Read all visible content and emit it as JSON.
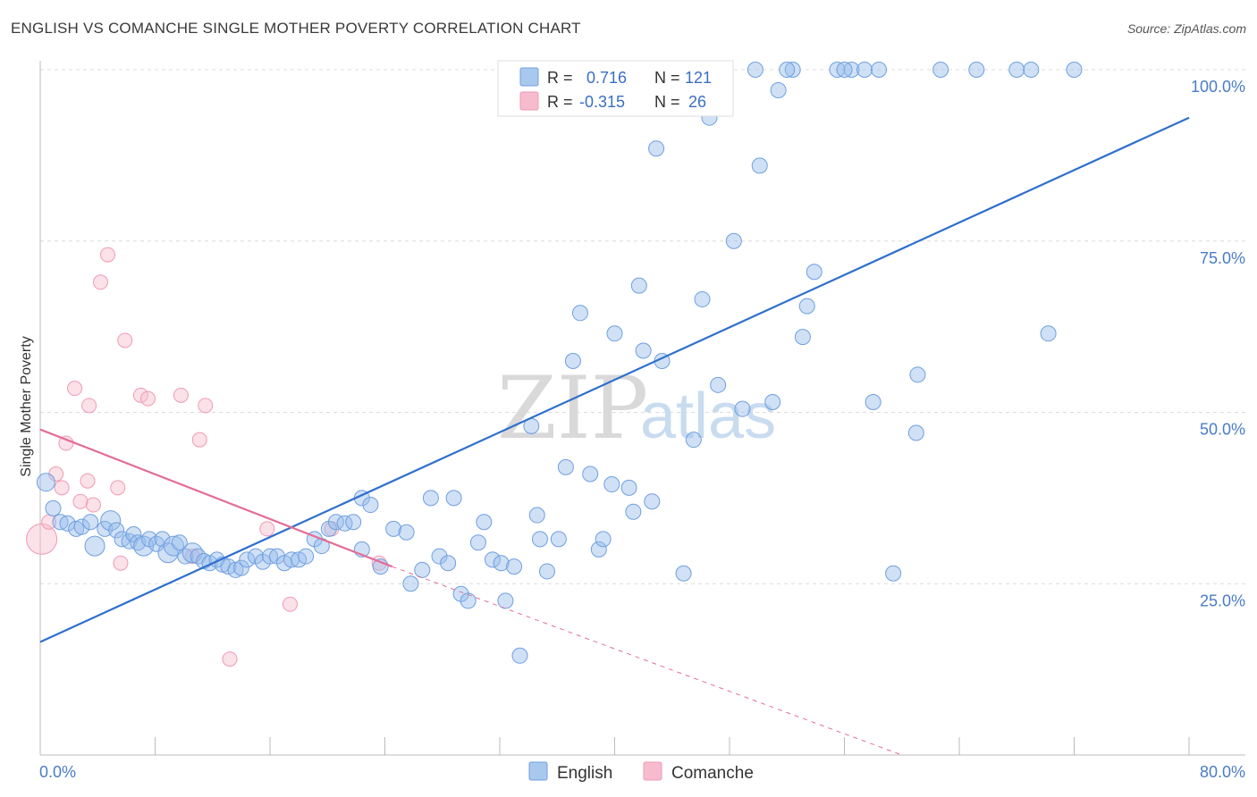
{
  "header": {
    "title": "ENGLISH VS COMANCHE SINGLE MOTHER POVERTY CORRELATION CHART",
    "source": "Source: ZipAtlas.com"
  },
  "watermark": {
    "zip": "ZIP",
    "atlas": "atlas"
  },
  "legend": {
    "rows": [
      {
        "r_label": "R =",
        "r_value": "0.716",
        "n_label": "N =",
        "n_value": "121",
        "color": "#a9c8ee"
      },
      {
        "r_label": "R =",
        "r_value": "-0.315",
        "n_label": "N =",
        "n_value": "26",
        "color": "#f6bccd"
      }
    ]
  },
  "chart_data": {
    "type": "scatter",
    "ylabel": "Single Mother Poverty",
    "xlim": [
      0,
      80
    ],
    "ylim": [
      0,
      100
    ],
    "x_tick_labels": [
      "0.0%",
      "80.0%"
    ],
    "y_tick_labels": [
      "25.0%",
      "50.0%",
      "75.0%",
      "100.0%"
    ],
    "y_ticks": [
      25,
      50,
      75,
      100
    ],
    "grid": true,
    "colors": {
      "english": "#6f9fe0",
      "english_line": "#2f6fcc",
      "comanche": "#f09ab5",
      "comanche_line": "#e36e97"
    },
    "series": [
      {
        "name": "English",
        "points": [
          [
            0.4,
            39.8
          ],
          [
            0.9,
            36.0
          ],
          [
            1.4,
            34.0
          ],
          [
            1.9,
            33.8
          ],
          [
            2.5,
            33.0
          ],
          [
            2.9,
            33.3
          ],
          [
            3.5,
            34.0
          ],
          [
            3.8,
            30.5
          ],
          [
            4.5,
            33.0
          ],
          [
            4.9,
            34.2
          ],
          [
            5.3,
            32.8
          ],
          [
            5.7,
            31.5
          ],
          [
            6.2,
            31.2
          ],
          [
            6.5,
            32.2
          ],
          [
            6.8,
            31.0
          ],
          [
            7.2,
            30.5
          ],
          [
            7.6,
            31.5
          ],
          [
            8.1,
            30.8
          ],
          [
            8.5,
            31.5
          ],
          [
            8.9,
            29.5
          ],
          [
            9.3,
            30.5
          ],
          [
            9.7,
            31.0
          ],
          [
            10.1,
            29.0
          ],
          [
            10.6,
            29.5
          ],
          [
            11.0,
            29.0
          ],
          [
            11.4,
            28.3
          ],
          [
            11.8,
            28.0
          ],
          [
            12.3,
            28.5
          ],
          [
            12.7,
            27.8
          ],
          [
            13.1,
            27.5
          ],
          [
            13.6,
            27.0
          ],
          [
            14.0,
            27.3
          ],
          [
            14.4,
            28.5
          ],
          [
            15.0,
            29.0
          ],
          [
            15.5,
            28.2
          ],
          [
            16.0,
            29.0
          ],
          [
            16.5,
            29.0
          ],
          [
            17.0,
            28.0
          ],
          [
            17.5,
            28.5
          ],
          [
            18.0,
            28.5
          ],
          [
            18.5,
            29.0
          ],
          [
            19.1,
            31.5
          ],
          [
            19.6,
            30.5
          ],
          [
            20.1,
            33.0
          ],
          [
            20.6,
            34.0
          ],
          [
            21.2,
            33.8
          ],
          [
            21.8,
            34.0
          ],
          [
            22.4,
            37.5
          ],
          [
            23.0,
            36.5
          ],
          [
            22.4,
            30.0
          ],
          [
            23.7,
            27.5
          ],
          [
            24.6,
            33.0
          ],
          [
            25.5,
            32.5
          ],
          [
            25.8,
            25.0
          ],
          [
            26.6,
            27.0
          ],
          [
            27.2,
            37.5
          ],
          [
            27.8,
            29.0
          ],
          [
            28.4,
            28.0
          ],
          [
            28.8,
            37.5
          ],
          [
            29.3,
            23.5
          ],
          [
            29.8,
            22.5
          ],
          [
            30.5,
            31.0
          ],
          [
            30.9,
            34.0
          ],
          [
            31.5,
            28.5
          ],
          [
            32.1,
            28.0
          ],
          [
            32.4,
            22.5
          ],
          [
            33.0,
            27.5
          ],
          [
            33.4,
            14.5
          ],
          [
            34.2,
            48.0
          ],
          [
            34.6,
            35.0
          ],
          [
            34.8,
            31.5
          ],
          [
            35.3,
            26.8
          ],
          [
            36.1,
            31.5
          ],
          [
            36.6,
            42.0
          ],
          [
            37.1,
            57.5
          ],
          [
            37.6,
            64.5
          ],
          [
            38.3,
            41.0
          ],
          [
            38.9,
            30.0
          ],
          [
            39.2,
            31.5
          ],
          [
            39.8,
            39.5
          ],
          [
            40.0,
            61.5
          ],
          [
            41.0,
            39.0
          ],
          [
            41.3,
            35.5
          ],
          [
            41.7,
            68.5
          ],
          [
            42.0,
            59.0
          ],
          [
            42.6,
            37.0
          ],
          [
            42.9,
            88.5
          ],
          [
            43.3,
            57.5
          ],
          [
            44.8,
            26.5
          ],
          [
            45.5,
            46.0
          ],
          [
            46.1,
            66.5
          ],
          [
            46.6,
            93.0
          ],
          [
            47.2,
            54.0
          ],
          [
            48.3,
            75.0
          ],
          [
            48.9,
            50.5
          ],
          [
            50.1,
            86.0
          ],
          [
            51.0,
            51.5
          ],
          [
            51.4,
            97.0
          ],
          [
            52.4,
            100.0
          ],
          [
            53.1,
            61.0
          ],
          [
            53.4,
            65.5
          ],
          [
            53.9,
            70.5
          ],
          [
            55.5,
            100.0
          ],
          [
            56.5,
            100.0
          ],
          [
            57.4,
            100.0
          ],
          [
            58.0,
            51.5
          ],
          [
            58.4,
            100.0
          ],
          [
            59.4,
            26.5
          ],
          [
            61.0,
            47.0
          ],
          [
            61.1,
            55.5
          ],
          [
            62.7,
            100.0
          ],
          [
            65.2,
            100.0
          ],
          [
            70.2,
            61.5
          ],
          [
            43.0,
            100.0
          ],
          [
            44.0,
            100.0
          ],
          [
            45.0,
            100.0
          ],
          [
            47.5,
            100.0
          ],
          [
            49.8,
            100.0
          ],
          [
            52.0,
            100.0
          ],
          [
            56.0,
            100.0
          ],
          [
            68.0,
            100.0
          ],
          [
            69.0,
            100.0
          ],
          [
            72.0,
            100.0
          ]
        ]
      },
      {
        "name": "Comanche",
        "points": [
          [
            0.1,
            31.5
          ],
          [
            0.6,
            34.0
          ],
          [
            1.1,
            41.0
          ],
          [
            1.5,
            39.0
          ],
          [
            1.8,
            45.5
          ],
          [
            2.4,
            53.5
          ],
          [
            2.8,
            37.0
          ],
          [
            3.3,
            40.0
          ],
          [
            3.4,
            51.0
          ],
          [
            3.7,
            36.5
          ],
          [
            4.2,
            69.0
          ],
          [
            4.7,
            73.0
          ],
          [
            5.4,
            39.0
          ],
          [
            5.6,
            28.0
          ],
          [
            5.9,
            60.5
          ],
          [
            7.0,
            52.5
          ],
          [
            7.5,
            52.0
          ],
          [
            9.8,
            52.5
          ],
          [
            10.6,
            29.0
          ],
          [
            11.1,
            46.0
          ],
          [
            11.5,
            51.0
          ],
          [
            13.2,
            14.0
          ],
          [
            15.8,
            33.0
          ],
          [
            17.4,
            22.0
          ],
          [
            20.3,
            33.0
          ],
          [
            23.6,
            28.0
          ]
        ]
      }
    ],
    "trend_lines": [
      {
        "series": "English",
        "x": [
          0,
          80
        ],
        "y": [
          16.5,
          93.0
        ]
      },
      {
        "series": "Comanche",
        "x": [
          0,
          24.5
        ],
        "y": [
          47.5,
          27.5
        ],
        "dashed_extension_x": [
          24.5,
          60
        ],
        "dashed_extension_y": [
          27.5,
          0
        ]
      }
    ]
  },
  "bottom_legend": {
    "items": [
      "English",
      "Comanche"
    ]
  }
}
